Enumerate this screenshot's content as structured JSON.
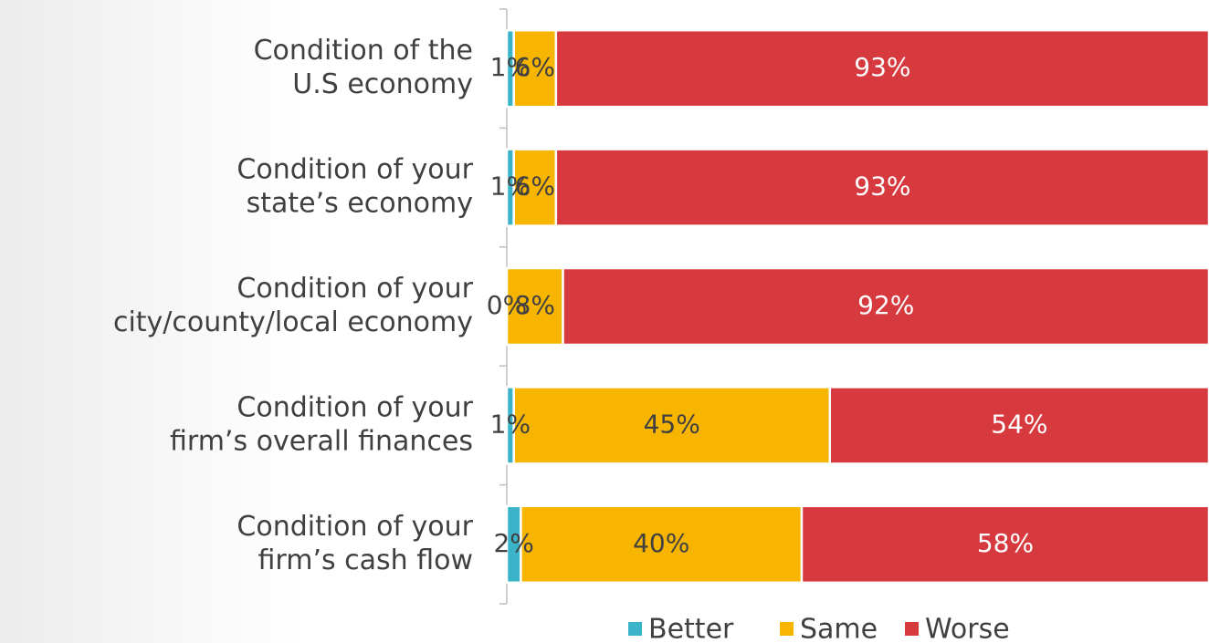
{
  "chart_data": {
    "type": "stacked-bar-horizontal",
    "categories": [
      [
        "Condition of the",
        "U.S economy"
      ],
      [
        "Condition of your",
        "state’s economy"
      ],
      [
        "Condition of your",
        "city/county/local economy"
      ],
      [
        "Condition of your",
        "firm’s overall finances"
      ],
      [
        "Condition of your",
        "firm’s cash flow"
      ]
    ],
    "series": [
      {
        "name": "Better",
        "color": "#3bb4c9",
        "values": [
          1,
          1,
          0,
          1,
          2
        ],
        "value_labels": [
          "1%",
          "1%",
          "0%",
          "1%",
          "2%"
        ]
      },
      {
        "name": "Same",
        "color": "#f7b500",
        "values": [
          6,
          6,
          8,
          45,
          40
        ],
        "value_labels": [
          "6%",
          "6%",
          "8%",
          "45%",
          "40%"
        ]
      },
      {
        "name": "Worse",
        "color": "#d63a3f",
        "values": [
          93,
          93,
          92,
          54,
          58
        ],
        "value_labels": [
          "93%",
          "93%",
          "92%",
          "54%",
          "58%"
        ]
      }
    ],
    "xlim": [
      0,
      100
    ],
    "legend": "bottom"
  }
}
